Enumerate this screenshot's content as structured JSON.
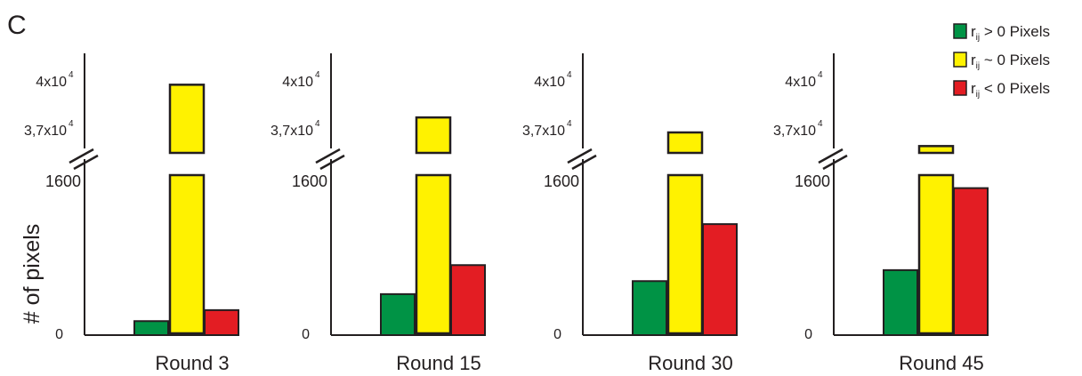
{
  "panel_label": "C",
  "chart_data": {
    "type": "bar",
    "ylabel": "# of pixels",
    "broken_axis": true,
    "lower_segment": {
      "ylim": [
        0,
        1600
      ],
      "ticks": [
        "0",
        "1600"
      ]
    },
    "upper_segment": {
      "ylim": [
        37000,
        40000
      ],
      "ticks": [
        "3,7x10",
        "4x10"
      ],
      "tick_exponent": "4"
    },
    "categories": [
      "Round 3",
      "Round 15",
      "Round 30",
      "Round 45"
    ],
    "legend": {
      "placement": "top-right",
      "entries": [
        {
          "symbol": "r",
          "subscript": "ij",
          "rest": " > 0  Pixels",
          "color": "#009345"
        },
        {
          "symbol": "r",
          "subscript": "ij",
          "rest": " ~ 0  Pixels",
          "color": "#fff200"
        },
        {
          "symbol": "r",
          "subscript": "ij",
          "rest": " < 0  Pixels",
          "color": "#e31d23"
        }
      ]
    },
    "series": [
      {
        "color": "#009345",
        "values": [
          140,
          410,
          540,
          650
        ]
      },
      {
        "color": "#fff200",
        "values": [
          39500,
          38300,
          37750,
          37250
        ]
      },
      {
        "color": "#e31d23",
        "values": [
          250,
          700,
          1110,
          1470
        ]
      }
    ]
  }
}
